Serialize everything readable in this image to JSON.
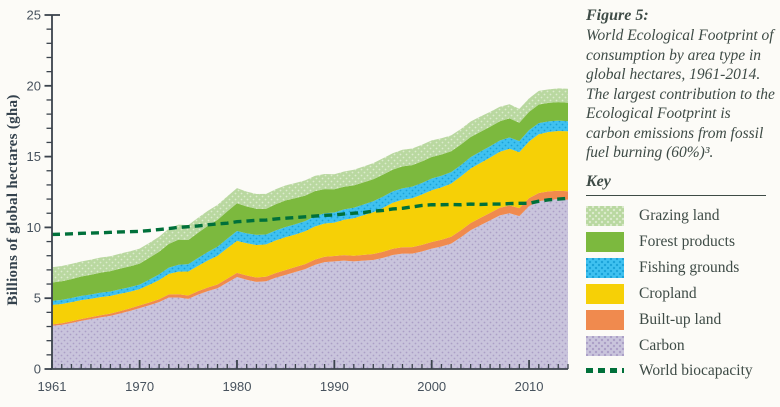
{
  "figure": {
    "title": "Figure 5:",
    "caption": "World Ecological Footprint of consumption by area type in global hectares, 1961-2014. The largest contribution to the Ecological Footprint is carbon emissions from fossil fuel burning (60%)³."
  },
  "key": {
    "title": "Key"
  },
  "colors": {
    "background": "#fcfbf7",
    "text": "#3e4b46",
    "tick_text": "#47525d",
    "axis": "#3b434c",
    "biocapacity_line": "#00703a"
  },
  "chart_data": {
    "type": "area",
    "title": "",
    "xlabel": "",
    "ylabel": "Billions of global hectares (gha)",
    "ylim": [
      0,
      25
    ],
    "ytick_interval": 5,
    "ytick_minor_interval": 1,
    "xtick_labels": [
      1961,
      1970,
      1980,
      1990,
      2000,
      2010
    ],
    "grid": false,
    "legend_position": "right",
    "years": [
      1961,
      1962,
      1963,
      1964,
      1965,
      1966,
      1967,
      1968,
      1969,
      1970,
      1971,
      1972,
      1973,
      1974,
      1975,
      1976,
      1977,
      1978,
      1979,
      1980,
      1981,
      1982,
      1983,
      1984,
      1985,
      1986,
      1987,
      1988,
      1989,
      1990,
      1991,
      1992,
      1993,
      1994,
      1995,
      1996,
      1997,
      1998,
      1999,
      2000,
      2001,
      2002,
      2003,
      2004,
      2005,
      2006,
      2007,
      2008,
      2009,
      2010,
      2011,
      2012,
      2013,
      2014
    ],
    "series": [
      {
        "name": "Carbon",
        "color": "#c9c4dc",
        "dotted": true,
        "dot_color": "#ab9fc6",
        "values": [
          3.05,
          3.12,
          3.25,
          3.4,
          3.52,
          3.65,
          3.75,
          3.92,
          4.1,
          4.3,
          4.5,
          4.72,
          5.05,
          5.05,
          4.95,
          5.25,
          5.5,
          5.7,
          6.1,
          6.5,
          6.3,
          6.15,
          6.2,
          6.45,
          6.65,
          6.85,
          7.05,
          7.35,
          7.55,
          7.6,
          7.65,
          7.6,
          7.65,
          7.7,
          7.85,
          8.05,
          8.15,
          8.15,
          8.3,
          8.5,
          8.65,
          8.85,
          9.3,
          9.8,
          10.15,
          10.5,
          10.85,
          11.0,
          10.8,
          11.5,
          11.85,
          11.95,
          12.0,
          11.95
        ]
      },
      {
        "name": "Built-up land",
        "color": "#f08a4e",
        "dotted": false,
        "values": [
          0.1,
          0.11,
          0.12,
          0.13,
          0.14,
          0.15,
          0.16,
          0.17,
          0.18,
          0.19,
          0.2,
          0.21,
          0.22,
          0.23,
          0.24,
          0.25,
          0.26,
          0.27,
          0.28,
          0.29,
          0.3,
          0.31,
          0.32,
          0.33,
          0.34,
          0.35,
          0.36,
          0.37,
          0.38,
          0.38,
          0.39,
          0.4,
          0.41,
          0.42,
          0.43,
          0.44,
          0.45,
          0.46,
          0.47,
          0.47,
          0.48,
          0.49,
          0.5,
          0.51,
          0.52,
          0.53,
          0.54,
          0.55,
          0.56,
          0.57,
          0.58,
          0.59,
          0.59,
          0.6
        ]
      },
      {
        "name": "Cropland",
        "color": "#f6d006",
        "dotted": false,
        "values": [
          1.38,
          1.36,
          1.35,
          1.33,
          1.3,
          1.28,
          1.25,
          1.22,
          1.18,
          1.15,
          1.25,
          1.35,
          1.45,
          1.6,
          1.7,
          1.78,
          1.9,
          2.02,
          2.15,
          2.26,
          2.28,
          2.3,
          2.28,
          2.3,
          2.32,
          2.3,
          2.32,
          2.34,
          2.35,
          2.36,
          2.5,
          2.65,
          2.8,
          2.95,
          3.1,
          3.25,
          3.35,
          3.45,
          3.55,
          3.65,
          3.7,
          3.75,
          3.8,
          3.85,
          3.88,
          3.9,
          3.95,
          4.0,
          3.95,
          4.0,
          4.15,
          4.2,
          4.22,
          4.24
        ]
      },
      {
        "name": "Fishing grounds",
        "color": "#3fc1f0",
        "dotted": true,
        "dot_color": "#1ba2d8",
        "values": [
          0.28,
          0.29,
          0.29,
          0.3,
          0.3,
          0.31,
          0.31,
          0.32,
          0.32,
          0.32,
          0.36,
          0.4,
          0.44,
          0.48,
          0.52,
          0.56,
          0.6,
          0.64,
          0.67,
          0.7,
          0.7,
          0.71,
          0.7,
          0.71,
          0.72,
          0.72,
          0.71,
          0.72,
          0.72,
          0.71,
          0.73,
          0.74,
          0.76,
          0.78,
          0.79,
          0.8,
          0.81,
          0.82,
          0.82,
          0.83,
          0.82,
          0.81,
          0.8,
          0.8,
          0.8,
          0.8,
          0.8,
          0.8,
          0.78,
          0.8,
          0.78,
          0.75,
          0.73,
          0.71
        ]
      },
      {
        "name": "Forest products",
        "color": "#7cb93e",
        "dotted": false,
        "values": [
          1.3,
          1.32,
          1.34,
          1.37,
          1.4,
          1.42,
          1.44,
          1.46,
          1.47,
          1.48,
          1.55,
          1.6,
          1.68,
          1.78,
          1.7,
          1.78,
          1.85,
          1.9,
          1.93,
          1.96,
          1.9,
          1.85,
          1.82,
          1.85,
          1.88,
          1.85,
          1.8,
          1.78,
          1.7,
          1.64,
          1.6,
          1.58,
          1.56,
          1.55,
          1.56,
          1.54,
          1.55,
          1.52,
          1.52,
          1.52,
          1.5,
          1.48,
          1.45,
          1.42,
          1.4,
          1.38,
          1.36,
          1.35,
          1.3,
          1.29,
          1.32,
          1.3,
          1.31,
          1.3
        ]
      },
      {
        "name": "Grazing land",
        "color": "#b9d8a0",
        "dotted": true,
        "dot_color": "#dcebcd",
        "values": [
          1.08,
          1.07,
          1.07,
          1.06,
          1.06,
          1.06,
          1.05,
          1.06,
          1.06,
          1.06,
          1.05,
          1.06,
          1.07,
          1.06,
          1.05,
          1.06,
          1.06,
          1.06,
          1.06,
          1.06,
          1.05,
          1.04,
          1.05,
          1.06,
          1.06,
          1.07,
          1.08,
          1.08,
          1.07,
          1.06,
          1.08,
          1.1,
          1.12,
          1.14,
          1.15,
          1.16,
          1.17,
          1.17,
          1.18,
          1.18,
          1.15,
          1.12,
          1.1,
          1.1,
          1.08,
          1.05,
          1.02,
          1.0,
          0.98,
          0.95,
          0.96,
          0.96,
          0.97,
          0.99
        ]
      }
    ],
    "line_series": {
      "name": "World biocapacity",
      "color": "#00703a",
      "style": "dashed",
      "values": [
        9.5,
        9.52,
        9.55,
        9.58,
        9.6,
        9.62,
        9.65,
        9.68,
        9.7,
        9.72,
        9.78,
        9.85,
        9.92,
        10.0,
        10.05,
        10.1,
        10.18,
        10.25,
        10.3,
        10.4,
        10.45,
        10.5,
        10.52,
        10.6,
        10.65,
        10.7,
        10.75,
        10.8,
        10.85,
        10.88,
        10.95,
        11.0,
        11.05,
        11.15,
        11.2,
        11.3,
        11.35,
        11.45,
        11.55,
        11.6,
        11.6,
        11.62,
        11.6,
        11.65,
        11.62,
        11.65,
        11.65,
        11.68,
        11.7,
        11.7,
        11.85,
        11.95,
        12.0,
        12.05
      ]
    }
  },
  "legend": {
    "items": [
      {
        "label": "Grazing land",
        "color": "#b9d8a0",
        "dotted": true,
        "dot_color": "#dcebcd",
        "type": "swatch"
      },
      {
        "label": "Forest products",
        "color": "#7cb93e",
        "dotted": false,
        "type": "swatch"
      },
      {
        "label": "Fishing grounds",
        "color": "#3fc1f0",
        "dotted": true,
        "dot_color": "#1ba2d8",
        "type": "swatch"
      },
      {
        "label": "Cropland",
        "color": "#f6d006",
        "dotted": false,
        "type": "swatch"
      },
      {
        "label": "Built-up land",
        "color": "#f08a4e",
        "dotted": false,
        "type": "swatch"
      },
      {
        "label": "Carbon",
        "color": "#c9c4dc",
        "dotted": true,
        "dot_color": "#ab9fc6",
        "type": "swatch"
      },
      {
        "label": "World biocapacity",
        "color": "#00703a",
        "type": "dashed-line"
      }
    ]
  }
}
